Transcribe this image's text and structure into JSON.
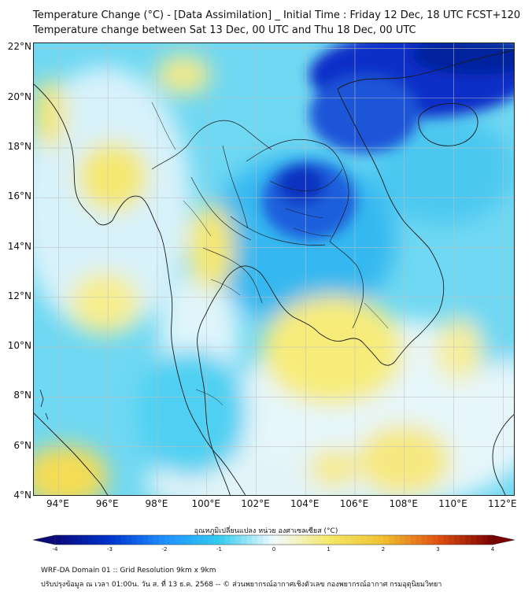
{
  "header": {
    "line1": "Temperature Change (°C) - [Data Assimilation] _ Initial Time : Friday 12 Dec, 18 UTC FCST+120",
    "line2": "Temperature change between Sat 13 Dec, 00 UTC and Thu 18 Dec, 00 UTC"
  },
  "map": {
    "lon_range": [
      93,
      112.5
    ],
    "lat_range": [
      4,
      22.2
    ],
    "lat_labels": [
      "22°N",
      "20°N",
      "18°N",
      "16°N",
      "14°N",
      "12°N",
      "10°N",
      "8°N",
      "6°N",
      "4°N"
    ],
    "lon_labels": [
      "94°E",
      "96°E",
      "98°E",
      "100°E",
      "102°E",
      "104°E",
      "106°E",
      "108°E",
      "110°E",
      "112°E"
    ],
    "grid": true
  },
  "colorbar": {
    "title": "อุณหภูมิเปลี่ยนแปลง หน่วย องศาเซลเซียส (°C)",
    "ticks": [
      "-4",
      "-3",
      "-2",
      "-1",
      "0",
      "1",
      "2",
      "3",
      "4"
    ],
    "min": -4,
    "max": 4,
    "colors": {
      "min": "#0a0a7a",
      "strong_cold": "#0033cc",
      "cold": "#1e90ff",
      "cool": "#33ccee",
      "neutral": "#f2fbff",
      "warm": "#f5e86a",
      "hot": "#f0a020",
      "max": "#7a0000"
    }
  },
  "footer": {
    "line1": "WRF-DA Domain 01 :: Grid Resolution 9km x 9km",
    "line2": "ปรับปรุงข้อมูล ณ เวลา 01:00น. วัน ส. ที่ 13 ธ.ค. 2568 -- © ส่วนพยากรณ์อากาศเชิงตัวเลข กองพยากรณ์อากาศ กรมอุตุนิยมวิทยา"
  }
}
